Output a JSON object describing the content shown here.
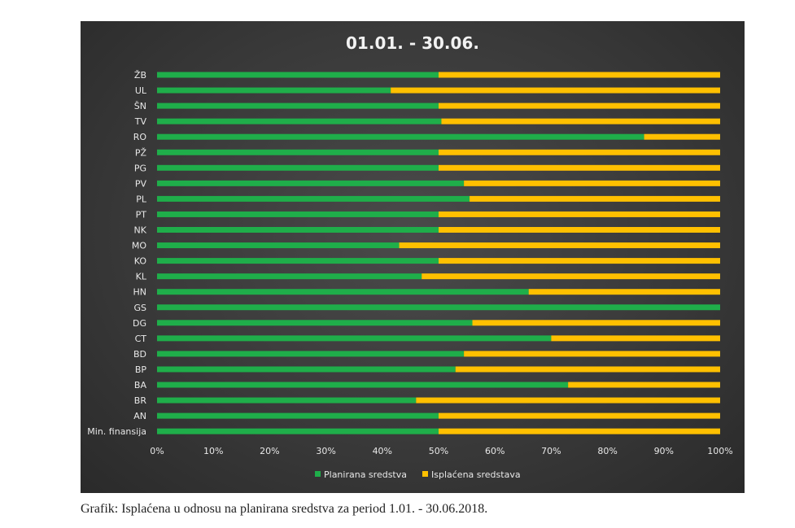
{
  "chart_data": {
    "type": "bar",
    "orientation": "horizontal",
    "stacked": "percent",
    "title": "01.01. - 30.06.",
    "categories": [
      "ŽB",
      "UL",
      "ŠN",
      "TV",
      "RO",
      "PŽ",
      "PG",
      "PV",
      "PL",
      "PT",
      "NK",
      "MO",
      "KO",
      "KL",
      "HN",
      "GS",
      "DG",
      "CT",
      "BD",
      "BP",
      "BA",
      "BR",
      "AN",
      "Min. finansija"
    ],
    "series": [
      {
        "name": "Planirana sredstva",
        "color": "#1fae4a",
        "values": [
          50,
          41.5,
          50,
          50.5,
          86.5,
          50,
          50,
          54.5,
          55.5,
          50,
          50,
          43,
          50,
          47,
          66,
          100,
          56,
          70,
          54.5,
          53,
          73,
          46,
          50,
          50
        ]
      },
      {
        "name": "Isplaćena sredstava",
        "color": "#ffc000",
        "values": [
          50,
          58.5,
          50,
          49.5,
          13.5,
          50,
          50,
          45.5,
          44.5,
          50,
          50,
          57,
          50,
          53,
          34,
          0,
          44,
          30,
          45.5,
          47,
          27,
          54,
          50,
          50
        ]
      }
    ],
    "xlim": [
      0,
      100
    ],
    "x_ticks": [
      "0%",
      "10%",
      "20%",
      "30%",
      "40%",
      "50%",
      "60%",
      "70%",
      "80%",
      "90%",
      "100%"
    ],
    "grid": false,
    "legend_position": "bottom"
  },
  "caption": "Grafik: Isplaćena u odnosu na planirana sredstva za period 1.01. - 30.06.2018."
}
